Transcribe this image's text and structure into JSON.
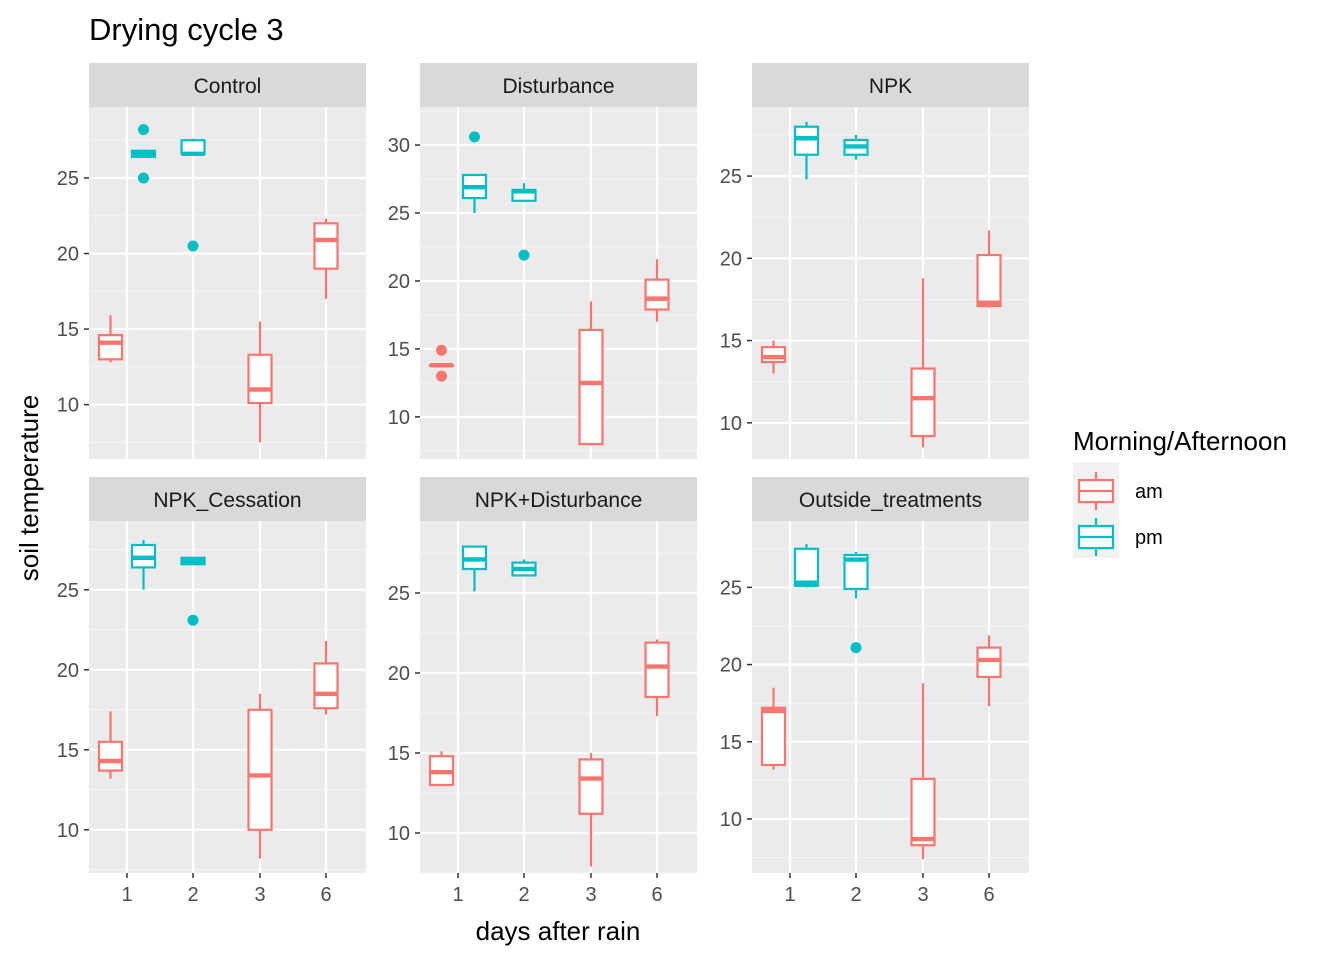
{
  "chart_data": {
    "type": "boxplot",
    "title": "Drying cycle 3",
    "xlabel": "days after rain",
    "ylabel": "soil temperature",
    "categories": [
      "1",
      "2",
      "3",
      "6"
    ],
    "legend": {
      "title": "Morning/Afternoon",
      "position": "right",
      "entries": [
        {
          "label": "am",
          "color": "#F8766D"
        },
        {
          "label": "pm",
          "color": "#00BFC4"
        }
      ]
    },
    "grid": true,
    "facets": [
      {
        "name": "Control",
        "ylim": [
          6.4,
          29.7
        ],
        "yticks": [
          10,
          15,
          20,
          25
        ],
        "boxes": [
          {
            "x": "1",
            "group": "am",
            "whisker_low": 12.8,
            "q1": 13.0,
            "median": 14.1,
            "q3": 14.6,
            "whisker_high": 15.9,
            "outliers": []
          },
          {
            "x": "1",
            "group": "pm",
            "whisker_low": 26.4,
            "q1": 26.4,
            "median": 26.6,
            "q3": 26.8,
            "whisker_high": 26.8,
            "outliers": [
              28.2,
              25.0
            ]
          },
          {
            "x": "2",
            "group": "pm",
            "whisker_low": 26.6,
            "q1": 26.6,
            "median": 26.6,
            "q3": 27.5,
            "whisker_high": 27.6,
            "outliers": [
              20.5
            ]
          },
          {
            "x": "3",
            "group": "am",
            "whisker_low": 7.5,
            "q1": 10.1,
            "median": 11.0,
            "q3": 13.3,
            "whisker_high": 15.5,
            "outliers": []
          },
          {
            "x": "6",
            "group": "am",
            "whisker_low": 17.0,
            "q1": 19.0,
            "median": 20.9,
            "q3": 22.0,
            "whisker_high": 22.3,
            "outliers": []
          }
        ]
      },
      {
        "name": "Disturbance",
        "ylim": [
          6.9,
          32.8
        ],
        "yticks": [
          10,
          15,
          20,
          25,
          30
        ],
        "boxes": [
          {
            "x": "1",
            "group": "am",
            "whisker_low": 13.8,
            "q1": 13.8,
            "median": 13.8,
            "q3": 13.8,
            "whisker_high": 13.8,
            "outliers": [
              14.9,
              13.0
            ]
          },
          {
            "x": "1",
            "group": "pm",
            "whisker_low": 25.0,
            "q1": 26.1,
            "median": 26.9,
            "q3": 27.8,
            "whisker_high": 27.8,
            "outliers": [
              30.6
            ]
          },
          {
            "x": "2",
            "group": "pm",
            "whisker_low": 25.9,
            "q1": 25.9,
            "median": 26.6,
            "q3": 26.7,
            "whisker_high": 27.2,
            "outliers": [
              21.9
            ]
          },
          {
            "x": "3",
            "group": "am",
            "whisker_low": 7.9,
            "q1": 8.0,
            "median": 12.5,
            "q3": 16.4,
            "whisker_high": 18.5,
            "outliers": []
          },
          {
            "x": "6",
            "group": "am",
            "whisker_low": 17.0,
            "q1": 17.9,
            "median": 18.7,
            "q3": 20.1,
            "whisker_high": 21.6,
            "outliers": []
          }
        ]
      },
      {
        "name": "NPK",
        "ylim": [
          7.8,
          29.2
        ],
        "yticks": [
          10,
          15,
          20,
          25
        ],
        "boxes": [
          {
            "x": "1",
            "group": "am",
            "whisker_low": 13.0,
            "q1": 13.7,
            "median": 14.0,
            "q3": 14.6,
            "whisker_high": 15.0,
            "outliers": []
          },
          {
            "x": "1",
            "group": "pm",
            "whisker_low": 24.8,
            "q1": 26.3,
            "median": 27.3,
            "q3": 28.0,
            "whisker_high": 28.3,
            "outliers": []
          },
          {
            "x": "2",
            "group": "pm",
            "whisker_low": 26.0,
            "q1": 26.3,
            "median": 26.8,
            "q3": 27.2,
            "whisker_high": 27.5,
            "outliers": []
          },
          {
            "x": "3",
            "group": "am",
            "whisker_low": 8.5,
            "q1": 9.2,
            "median": 11.5,
            "q3": 13.3,
            "whisker_high": 18.8,
            "outliers": []
          },
          {
            "x": "6",
            "group": "am",
            "whisker_low": 17.0,
            "q1": 17.1,
            "median": 17.3,
            "q3": 20.2,
            "whisker_high": 21.7,
            "outliers": []
          }
        ]
      },
      {
        "name": "NPK_Cessation",
        "ylim": [
          7.3,
          29.3
        ],
        "yticks": [
          10,
          15,
          20,
          25
        ],
        "boxes": [
          {
            "x": "1",
            "group": "am",
            "whisker_low": 13.2,
            "q1": 13.7,
            "median": 14.3,
            "q3": 15.5,
            "whisker_high": 17.4,
            "outliers": []
          },
          {
            "x": "1",
            "group": "pm",
            "whisker_low": 25.0,
            "q1": 26.4,
            "median": 27.0,
            "q3": 27.8,
            "whisker_high": 28.1,
            "outliers": []
          },
          {
            "x": "2",
            "group": "pm",
            "whisker_low": 26.6,
            "q1": 26.6,
            "median": 26.8,
            "q3": 27.0,
            "whisker_high": 27.0,
            "outliers": [
              23.1
            ]
          },
          {
            "x": "3",
            "group": "am",
            "whisker_low": 8.2,
            "q1": 10.0,
            "median": 13.4,
            "q3": 17.5,
            "whisker_high": 18.5,
            "outliers": []
          },
          {
            "x": "6",
            "group": "am",
            "whisker_low": 17.2,
            "q1": 17.6,
            "median": 18.5,
            "q3": 20.4,
            "whisker_high": 21.8,
            "outliers": []
          }
        ]
      },
      {
        "name": "NPK+Disturbance",
        "ylim": [
          7.5,
          29.5
        ],
        "yticks": [
          10,
          15,
          20,
          25
        ],
        "boxes": [
          {
            "x": "1",
            "group": "am",
            "whisker_low": 13.0,
            "q1": 13.0,
            "median": 13.8,
            "q3": 14.8,
            "whisker_high": 15.1,
            "outliers": []
          },
          {
            "x": "1",
            "group": "pm",
            "whisker_low": 25.1,
            "q1": 26.5,
            "median": 27.1,
            "q3": 27.9,
            "whisker_high": 27.9,
            "outliers": []
          },
          {
            "x": "2",
            "group": "pm",
            "whisker_low": 26.1,
            "q1": 26.1,
            "median": 26.5,
            "q3": 26.9,
            "whisker_high": 27.1,
            "outliers": []
          },
          {
            "x": "3",
            "group": "am",
            "whisker_low": 7.9,
            "q1": 11.2,
            "median": 13.4,
            "q3": 14.6,
            "whisker_high": 15.0,
            "outliers": []
          },
          {
            "x": "6",
            "group": "am",
            "whisker_low": 17.3,
            "q1": 18.5,
            "median": 20.4,
            "q3": 21.9,
            "whisker_high": 22.1,
            "outliers": []
          }
        ]
      },
      {
        "name": "Outside_treatments",
        "ylim": [
          6.5,
          29.3
        ],
        "yticks": [
          10,
          15,
          20,
          25
        ],
        "boxes": [
          {
            "x": "1",
            "group": "am",
            "whisker_low": 13.2,
            "q1": 13.5,
            "median": 17.0,
            "q3": 17.2,
            "whisker_high": 18.5,
            "outliers": []
          },
          {
            "x": "1",
            "group": "pm",
            "whisker_low": 25.0,
            "q1": 25.1,
            "median": 25.3,
            "q3": 27.5,
            "whisker_high": 27.8,
            "outliers": []
          },
          {
            "x": "2",
            "group": "pm",
            "whisker_low": 24.3,
            "q1": 24.9,
            "median": 26.8,
            "q3": 27.1,
            "whisker_high": 27.3,
            "outliers": [
              21.1
            ]
          },
          {
            "x": "3",
            "group": "am",
            "whisker_low": 7.4,
            "q1": 8.3,
            "median": 8.7,
            "q3": 12.6,
            "whisker_high": 18.8,
            "outliers": []
          },
          {
            "x": "6",
            "group": "am",
            "whisker_low": 17.3,
            "q1": 19.2,
            "median": 20.3,
            "q3": 21.1,
            "whisker_high": 21.9,
            "outliers": []
          }
        ]
      }
    ]
  }
}
